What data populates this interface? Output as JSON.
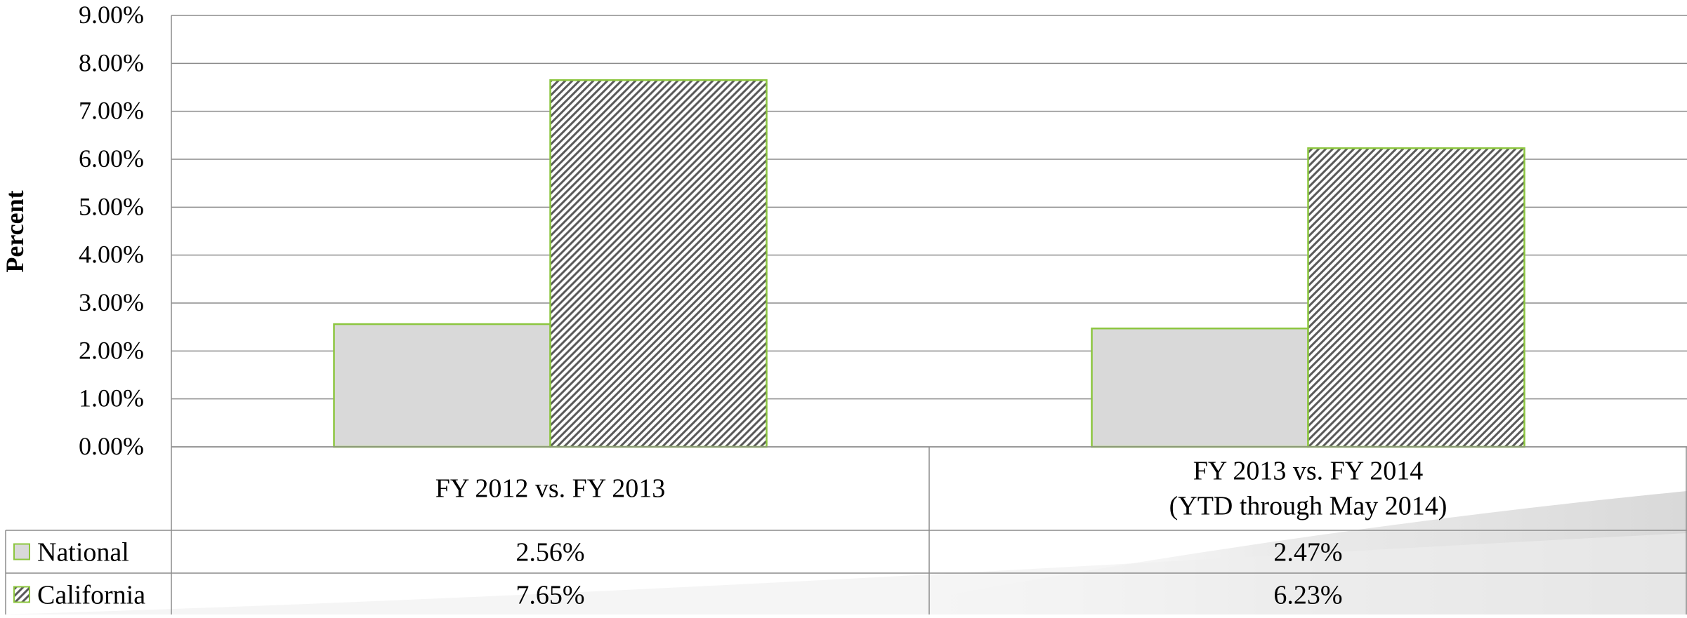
{
  "chart_data": {
    "type": "bar",
    "ylabel": "Percent",
    "ylim": [
      0,
      9
    ],
    "y_ticks": [
      "0.00%",
      "1.00%",
      "2.00%",
      "3.00%",
      "4.00%",
      "5.00%",
      "6.00%",
      "7.00%",
      "8.00%",
      "9.00%"
    ],
    "grid": true,
    "legend": "data-table",
    "categories": [
      [
        "FY 2012 vs. FY 2013"
      ],
      [
        "FY 2013 vs. FY 2014",
        "(YTD through May 2014)"
      ]
    ],
    "series": [
      {
        "name": "National",
        "values": [
          2.56,
          2.47
        ],
        "labels": [
          "2.56%",
          "2.47%"
        ],
        "fill": "#d9d9d9",
        "pattern": "solid",
        "border": "#8cc63f"
      },
      {
        "name": "California",
        "values": [
          7.65,
          6.23
        ],
        "labels": [
          "7.65%",
          "6.23%"
        ],
        "fill": "#ffffff",
        "hatch": "#555555",
        "pattern": "diagonal-hatch",
        "border": "#8cc63f"
      }
    ]
  }
}
